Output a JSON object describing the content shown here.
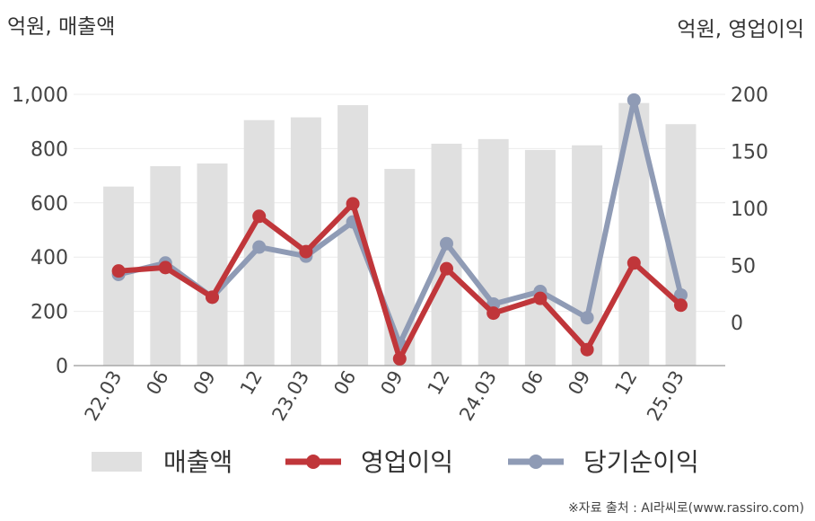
{
  "chart_data": {
    "type": "bar+line",
    "left_axis_unit": "억원, 매출액",
    "right_axis_unit": "억원, 영업이익",
    "categories": [
      "22.03",
      "06",
      "09",
      "12",
      "23.03",
      "06",
      "09",
      "12",
      "24.03",
      "06",
      "09",
      "12",
      "25.03"
    ],
    "left_ticks": [
      "0",
      "200",
      "400",
      "600",
      "800",
      "1,000"
    ],
    "right_ticks": [
      "0",
      "50",
      "100",
      "150",
      "200"
    ],
    "left_ylim": [
      0,
      1000
    ],
    "right_ylim": [
      -38,
      200
    ],
    "bar_series": {
      "name": "매출액",
      "color": "#e0e0e0",
      "values": [
        660,
        735,
        745,
        905,
        915,
        960,
        725,
        818,
        835,
        795,
        812,
        968,
        890
      ]
    },
    "line_series": [
      {
        "name": "영업이익",
        "color": "#c0363a",
        "axis": "right",
        "values": [
          45,
          48,
          22,
          93,
          62,
          104,
          -32,
          47,
          8,
          21,
          -24,
          52,
          15
        ]
      },
      {
        "name": "당기순이익",
        "color": "#8f9bb5",
        "axis": "right",
        "values": [
          42,
          52,
          22,
          66,
          58,
          88,
          -19,
          69,
          16,
          27,
          4,
          195,
          24
        ]
      }
    ],
    "legend_position": "bottom",
    "grid": true
  },
  "source_note": "※자료 출처 : AI라씨로(www.rassiro.com)"
}
